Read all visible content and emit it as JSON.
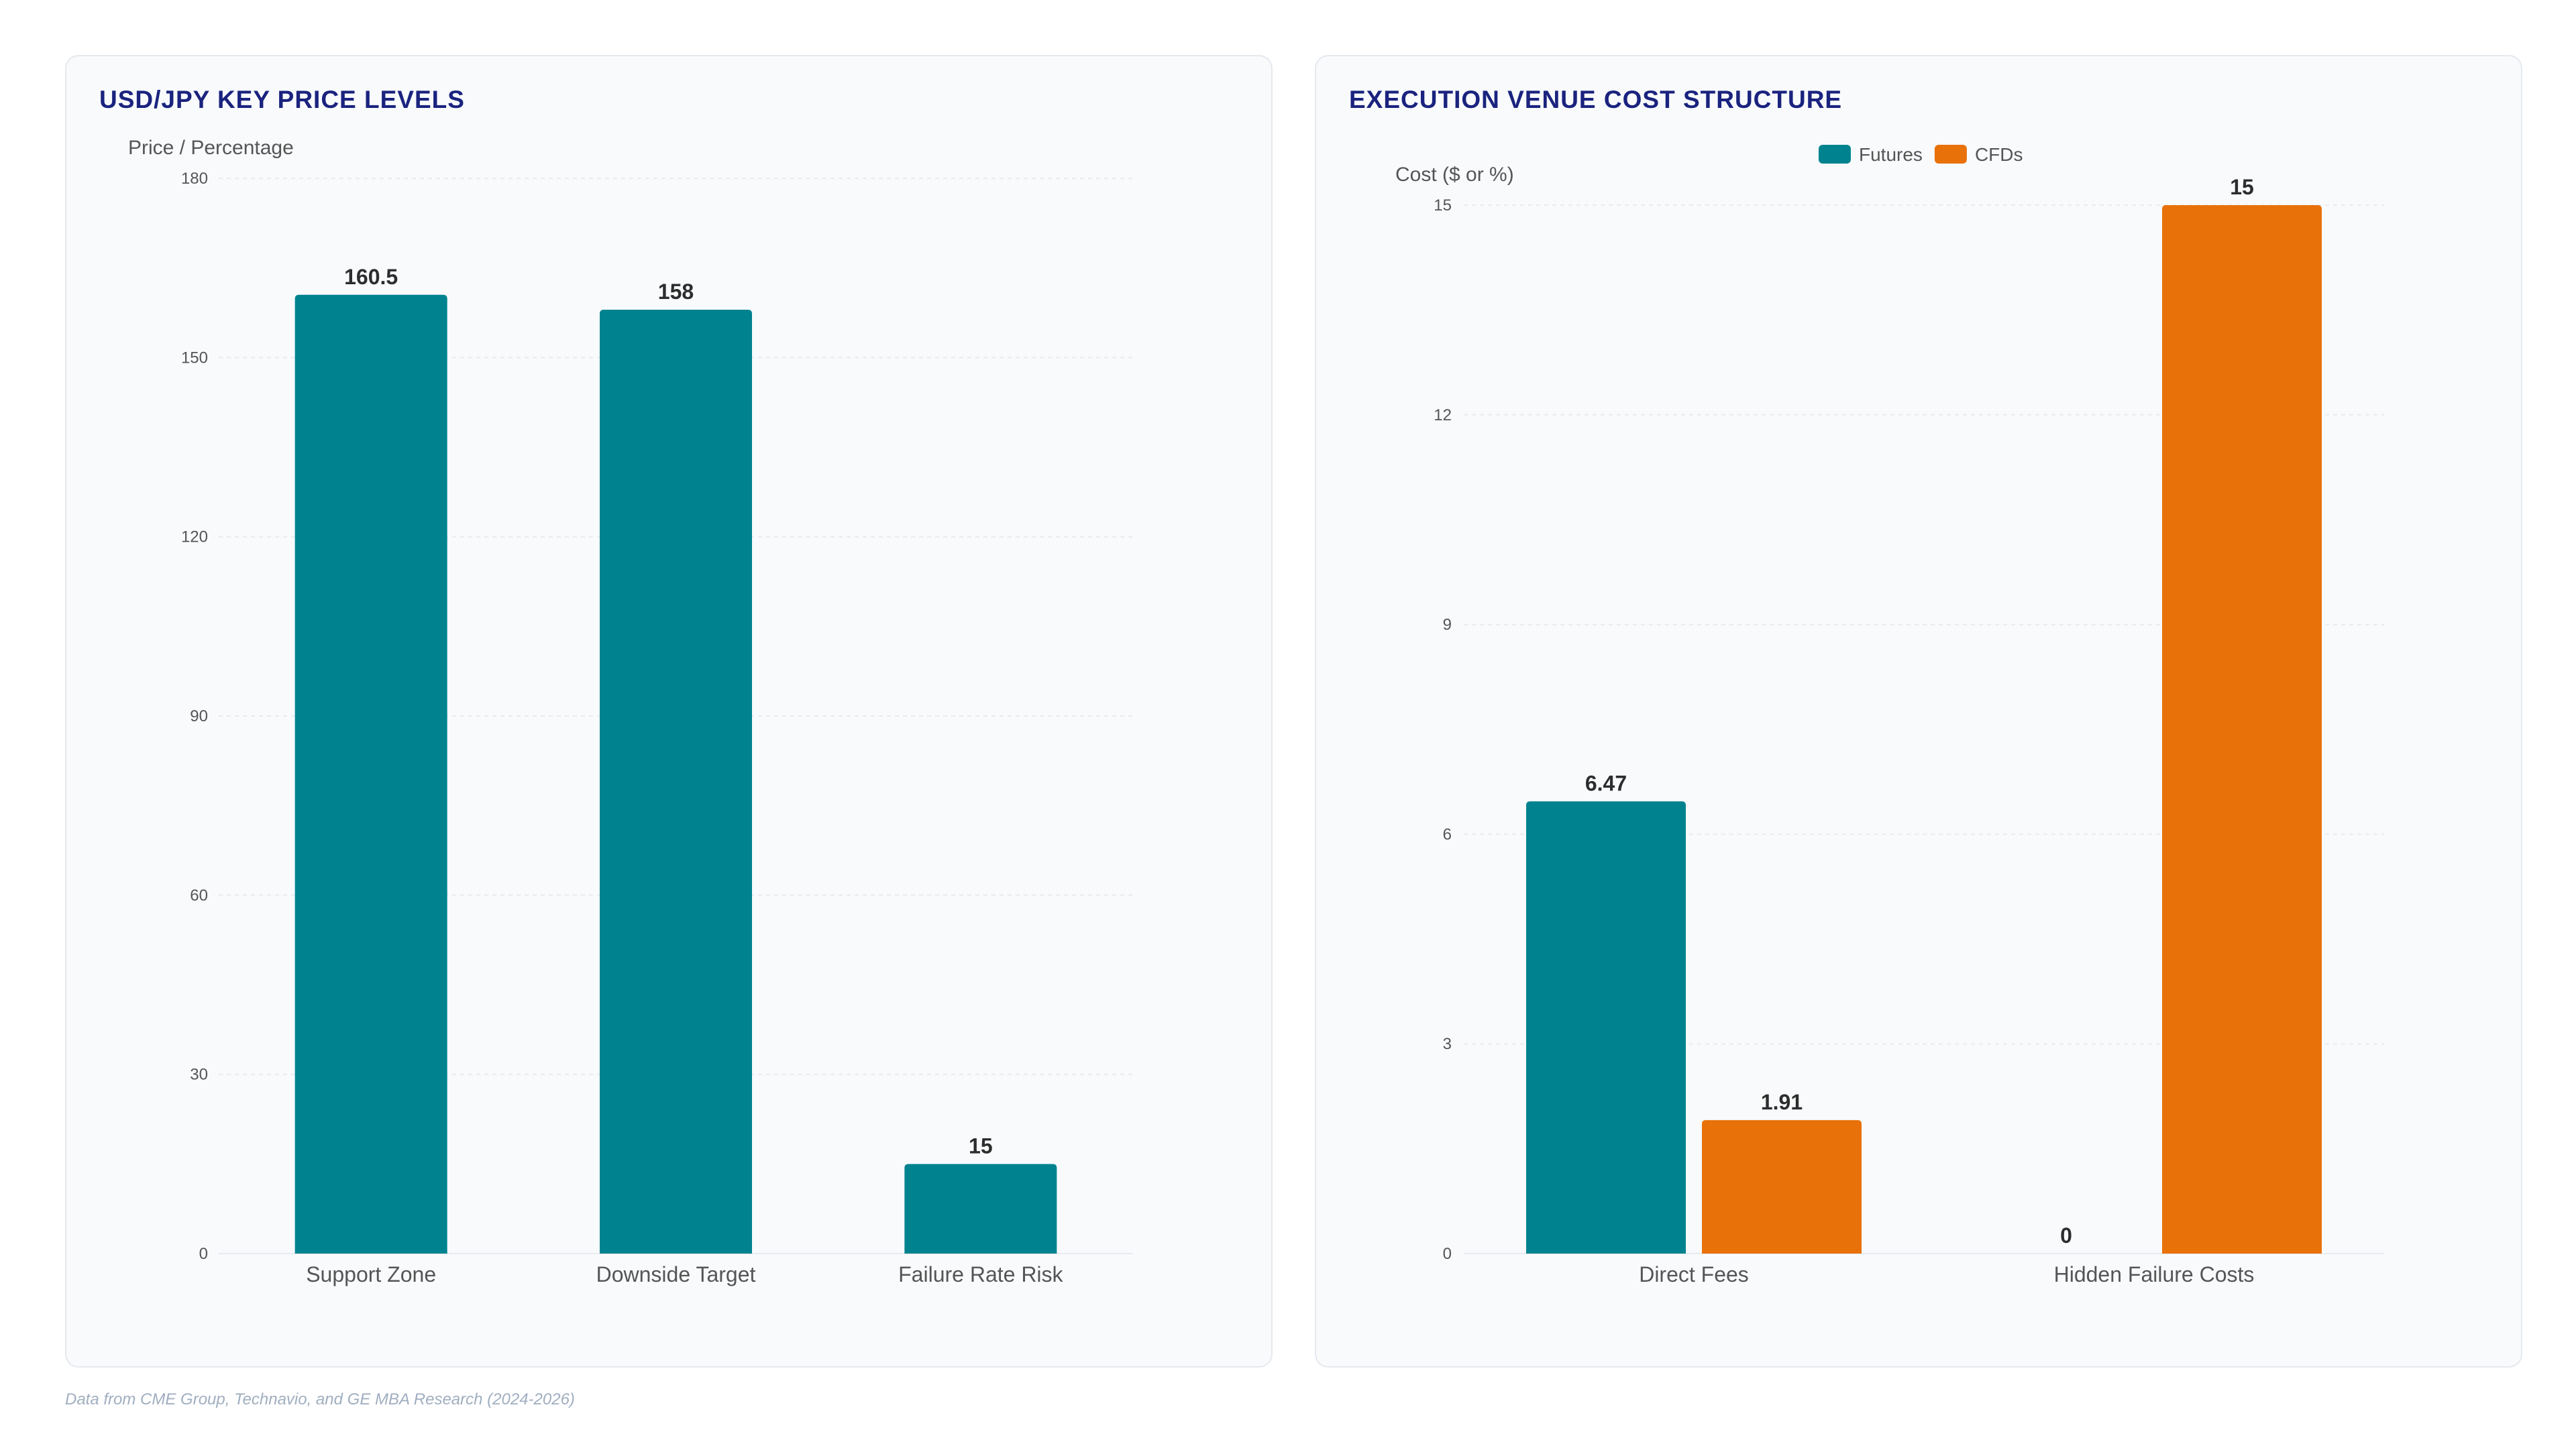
{
  "colors": {
    "futures": "#00838f",
    "cfds": "#e8710a",
    "title": "#1a237e",
    "axis_text": "#555555",
    "label_text": "#2d2d2d",
    "grid": "#e8ebef"
  },
  "chart_data": [
    {
      "type": "bar",
      "title": "USD/JPY KEY PRICE LEVELS",
      "ylabel": "Price / Percentage",
      "xlabel": "",
      "categories": [
        "Support Zone",
        "Downside Target",
        "Failure Rate Risk"
      ],
      "series": [
        {
          "values": [
            160.5,
            158,
            15
          ]
        }
      ],
      "ylim": [
        0,
        180
      ],
      "yticks": [
        0,
        30,
        60,
        90,
        120,
        150,
        180
      ],
      "data_labels": [
        "160.5",
        "158",
        "15"
      ],
      "grid": true,
      "legend": false
    },
    {
      "type": "bar",
      "title": "EXECUTION VENUE COST STRUCTURE",
      "ylabel": "Cost ($ or %)",
      "xlabel": "",
      "categories": [
        "Direct Fees",
        "Hidden Failure Costs"
      ],
      "series": [
        {
          "name": "Futures",
          "values": [
            6.47,
            0
          ],
          "data_labels": [
            "6.47",
            "0"
          ]
        },
        {
          "name": "CFDs",
          "values": [
            1.91,
            15
          ],
          "data_labels": [
            "1.91",
            "15"
          ]
        }
      ],
      "ylim": [
        0,
        15
      ],
      "yticks": [
        0,
        3,
        6,
        9,
        12,
        15
      ],
      "grid": true,
      "legend": "top-center"
    }
  ],
  "footer": "Data from CME Group, Technavio, and GE MBA Research (2024-2026)"
}
